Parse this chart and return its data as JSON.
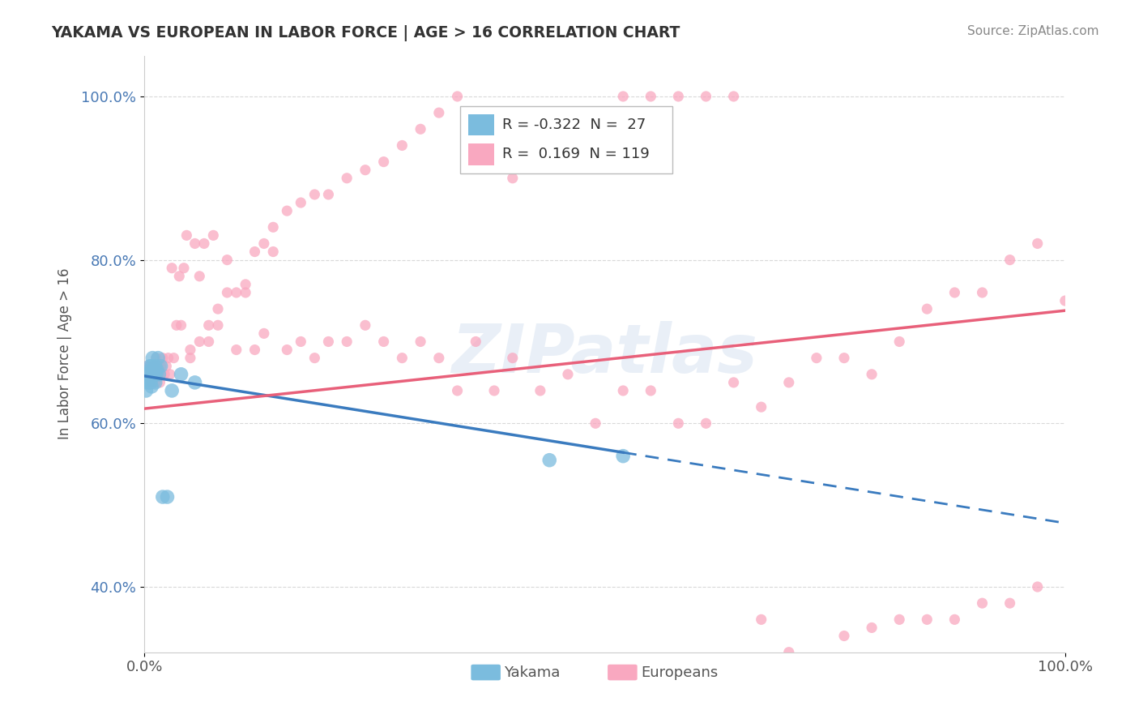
{
  "title": "YAKAMA VS EUROPEAN IN LABOR FORCE | AGE > 16 CORRELATION CHART",
  "source": "Source: ZipAtlas.com",
  "ylabel": "In Labor Force | Age > 16",
  "xlim": [
    0.0,
    1.0
  ],
  "ylim": [
    0.32,
    1.05
  ],
  "yticks": [
    0.4,
    0.6,
    0.8,
    1.0
  ],
  "ytick_labels": [
    "40.0%",
    "60.0%",
    "80.0%",
    "100.0%"
  ],
  "xticks": [
    0.0,
    1.0
  ],
  "xtick_labels": [
    "0.0%",
    "100.0%"
  ],
  "legend_r1": "-0.322",
  "legend_n1": "27",
  "legend_r2": "0.169",
  "legend_n2": "119",
  "yakama_color": "#7bbcde",
  "european_color": "#f9a8c0",
  "trend_yakama_color": "#3a7bbf",
  "trend_european_color": "#e8607a",
  "watermark": "ZIPatlas",
  "background_color": "#ffffff",
  "grid_color": "#d0d0d0",
  "yakama_x": [
    0.002,
    0.003,
    0.004,
    0.005,
    0.006,
    0.007,
    0.007,
    0.008,
    0.008,
    0.009,
    0.009,
    0.01,
    0.011,
    0.012,
    0.012,
    0.013,
    0.014,
    0.015,
    0.016,
    0.018,
    0.02,
    0.025,
    0.03,
    0.04,
    0.055,
    0.44,
    0.52
  ],
  "yakama_y": [
    0.64,
    0.66,
    0.65,
    0.655,
    0.67,
    0.665,
    0.65,
    0.67,
    0.645,
    0.66,
    0.68,
    0.665,
    0.66,
    0.67,
    0.65,
    0.66,
    0.665,
    0.68,
    0.66,
    0.67,
    0.51,
    0.51,
    0.64,
    0.66,
    0.65,
    0.555,
    0.56
  ],
  "european_x": [
    0.003,
    0.004,
    0.005,
    0.006,
    0.007,
    0.008,
    0.009,
    0.01,
    0.011,
    0.012,
    0.013,
    0.014,
    0.015,
    0.016,
    0.017,
    0.018,
    0.019,
    0.02,
    0.022,
    0.024,
    0.026,
    0.028,
    0.03,
    0.032,
    0.035,
    0.038,
    0.04,
    0.043,
    0.046,
    0.05,
    0.055,
    0.06,
    0.065,
    0.07,
    0.075,
    0.08,
    0.09,
    0.1,
    0.11,
    0.12,
    0.13,
    0.14,
    0.155,
    0.17,
    0.185,
    0.2,
    0.22,
    0.24,
    0.26,
    0.28,
    0.3,
    0.32,
    0.34,
    0.36,
    0.38,
    0.4,
    0.43,
    0.46,
    0.49,
    0.52,
    0.55,
    0.58,
    0.61,
    0.64,
    0.67,
    0.7,
    0.73,
    0.76,
    0.79,
    0.82,
    0.85,
    0.88,
    0.91,
    0.94,
    0.97,
    1.0,
    0.05,
    0.06,
    0.07,
    0.08,
    0.09,
    0.1,
    0.11,
    0.12,
    0.13,
    0.14,
    0.155,
    0.17,
    0.185,
    0.2,
    0.22,
    0.24,
    0.26,
    0.28,
    0.3,
    0.32,
    0.34,
    0.36,
    0.38,
    0.4,
    0.43,
    0.46,
    0.49,
    0.52,
    0.55,
    0.58,
    0.61,
    0.64,
    0.67,
    0.7,
    0.73,
    0.76,
    0.79,
    0.82,
    0.85,
    0.88,
    0.91,
    0.94,
    0.97
  ],
  "european_y": [
    0.67,
    0.66,
    0.65,
    0.67,
    0.66,
    0.66,
    0.65,
    0.67,
    0.66,
    0.65,
    0.68,
    0.66,
    0.67,
    0.66,
    0.65,
    0.67,
    0.66,
    0.68,
    0.66,
    0.67,
    0.68,
    0.66,
    0.79,
    0.68,
    0.72,
    0.78,
    0.72,
    0.79,
    0.83,
    0.69,
    0.82,
    0.78,
    0.82,
    0.7,
    0.83,
    0.72,
    0.8,
    0.69,
    0.76,
    0.69,
    0.71,
    0.81,
    0.69,
    0.7,
    0.68,
    0.7,
    0.7,
    0.72,
    0.7,
    0.68,
    0.7,
    0.68,
    0.64,
    0.7,
    0.64,
    0.68,
    0.64,
    0.66,
    0.6,
    0.64,
    0.64,
    0.6,
    0.6,
    0.65,
    0.62,
    0.65,
    0.68,
    0.68,
    0.66,
    0.7,
    0.74,
    0.76,
    0.76,
    0.8,
    0.82,
    0.75,
    0.68,
    0.7,
    0.72,
    0.74,
    0.76,
    0.76,
    0.77,
    0.81,
    0.82,
    0.84,
    0.86,
    0.87,
    0.88,
    0.88,
    0.9,
    0.91,
    0.92,
    0.94,
    0.96,
    0.98,
    1.0,
    0.96,
    0.94,
    0.9,
    0.96,
    0.97,
    0.98,
    1.0,
    1.0,
    1.0,
    1.0,
    1.0,
    0.36,
    0.32,
    0.3,
    0.34,
    0.35,
    0.36,
    0.36,
    0.36,
    0.38,
    0.38,
    0.4
  ],
  "trend_yakama_start_x": 0.0,
  "trend_yakama_start_y": 0.658,
  "trend_yakama_end_x": 1.0,
  "trend_yakama_end_y": 0.478,
  "trend_yakama_solid_end": 0.52,
  "trend_european_start_x": 0.0,
  "trend_european_start_y": 0.618,
  "trend_european_end_x": 1.0,
  "trend_european_end_y": 0.738
}
